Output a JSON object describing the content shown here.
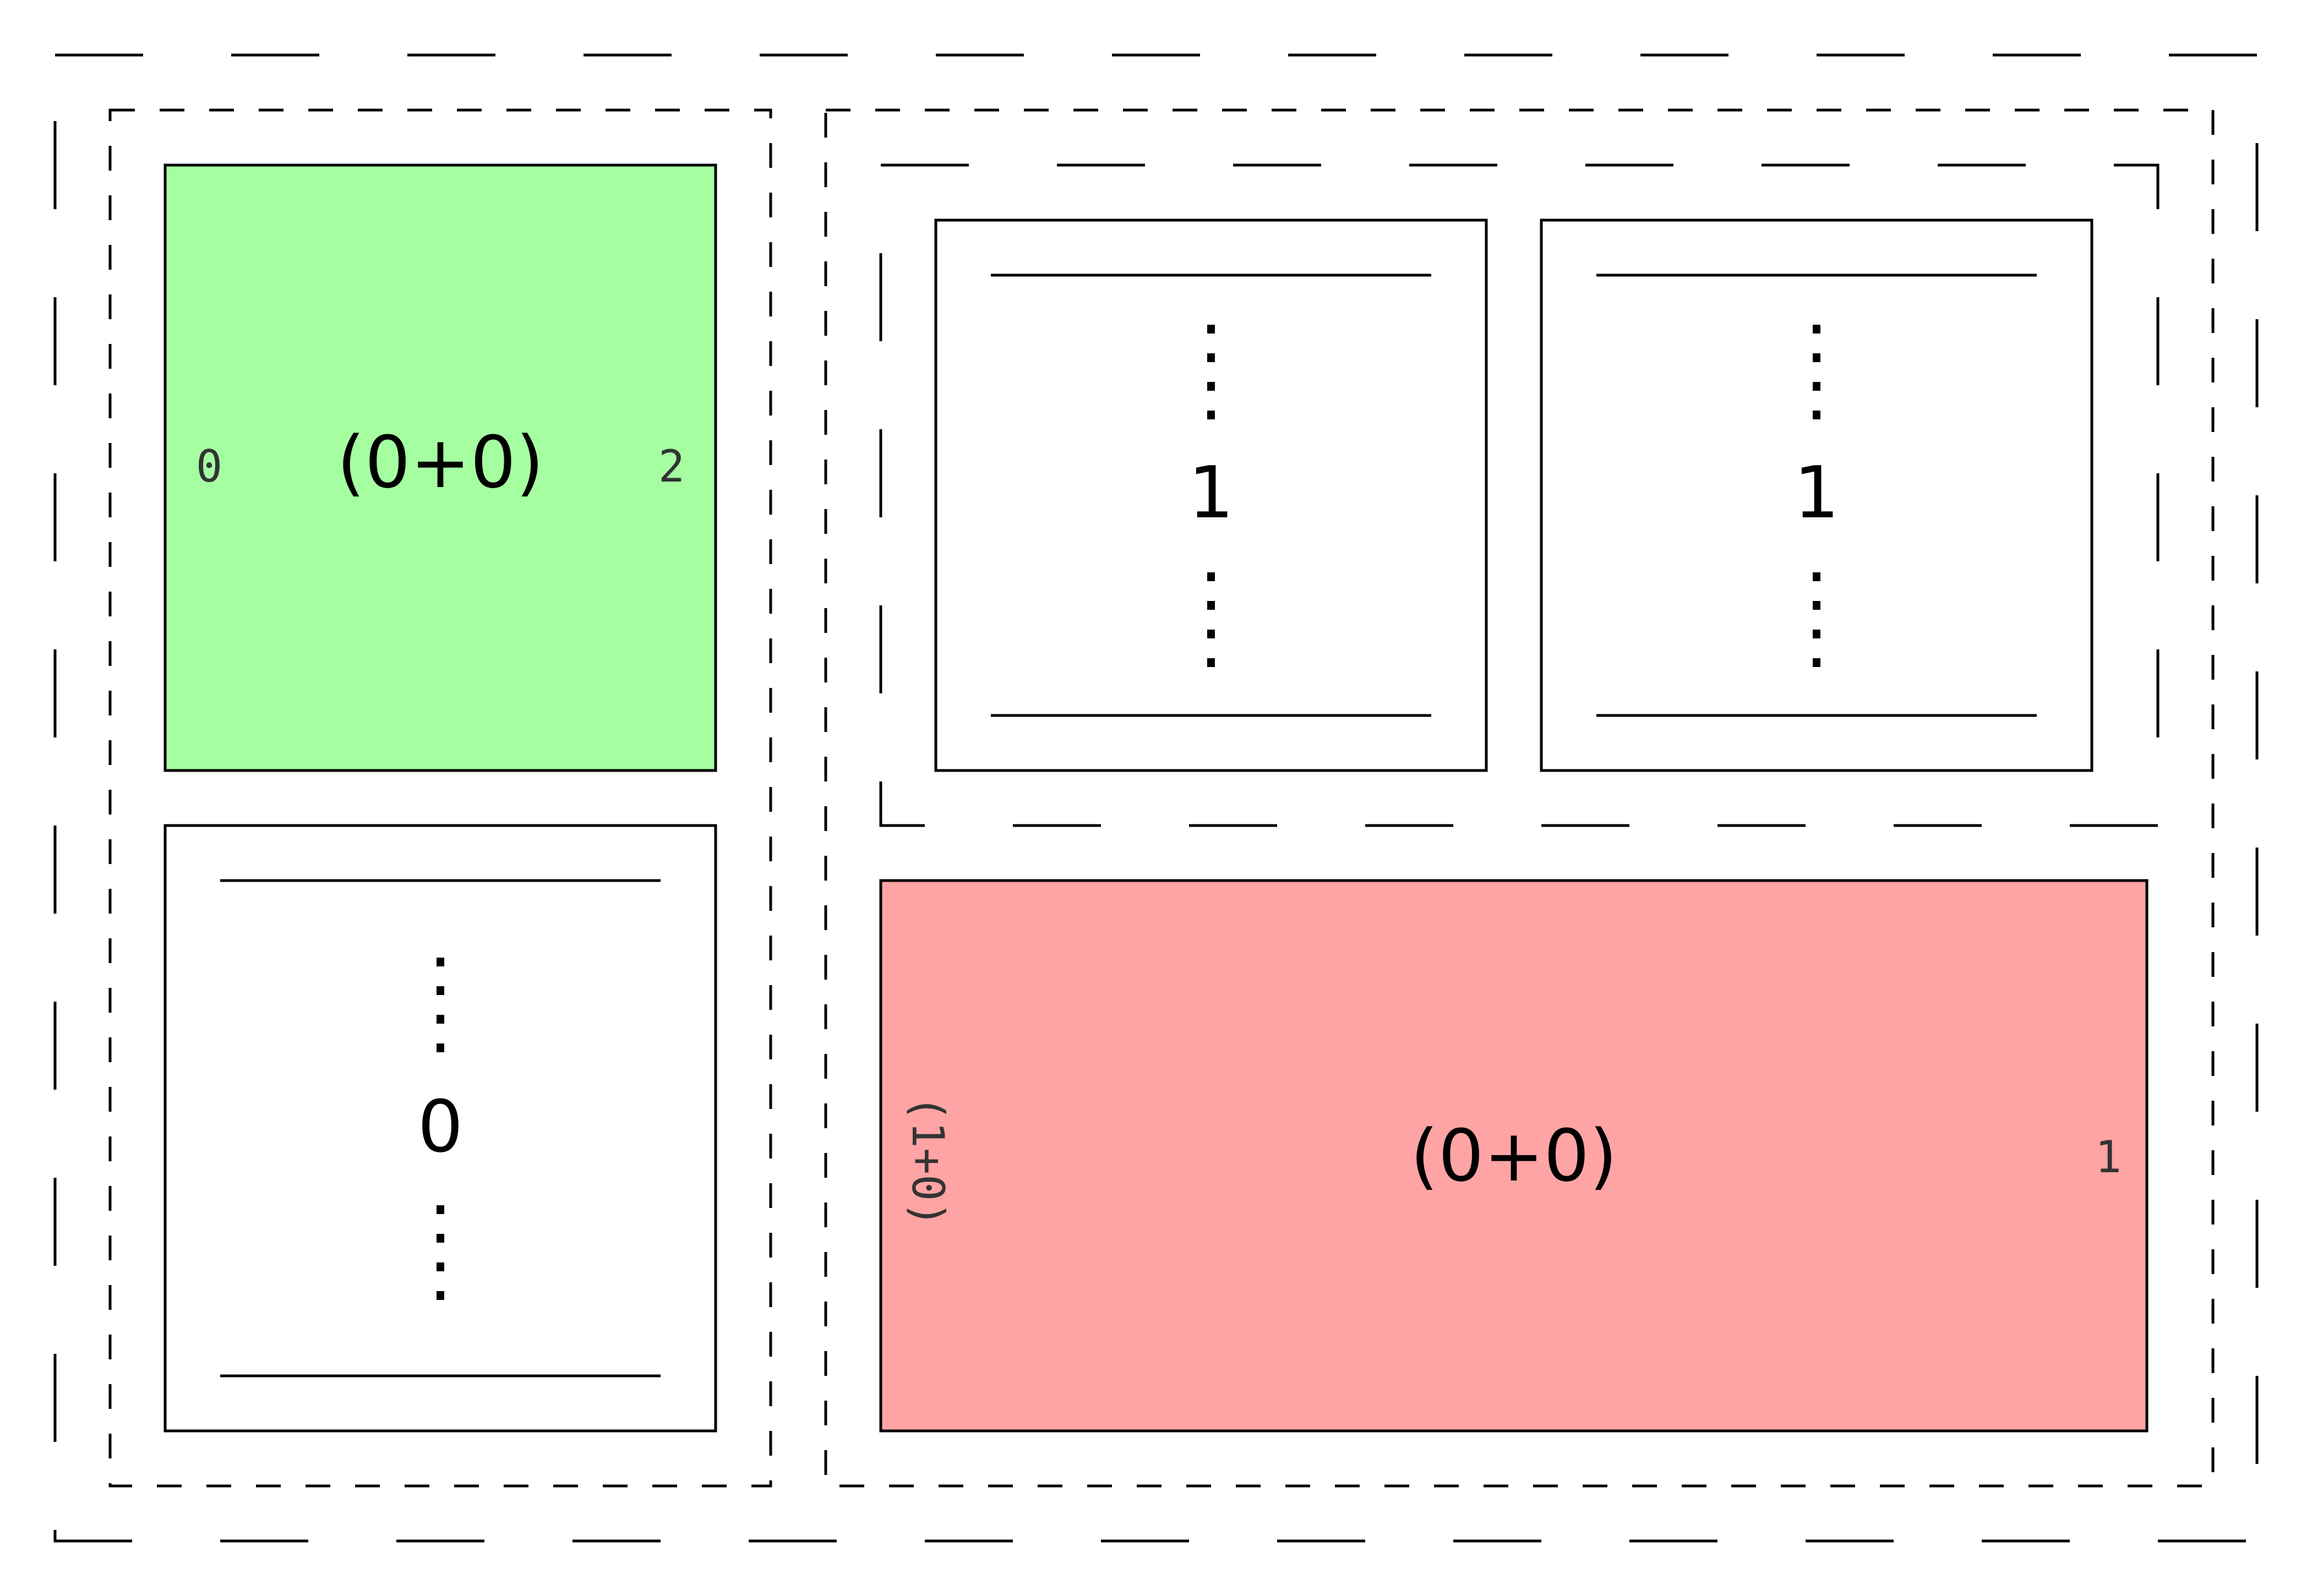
{
  "colors": {
    "green_block": "#a5ffa1",
    "red_block": "#ffa4a4",
    "stroke": "#000000",
    "background": "#ffffff"
  },
  "left_column": {
    "green_block": {
      "label": "(0+0)",
      "left_index": "0",
      "right_index": "2"
    },
    "stack_block": {
      "label": "0",
      "dots_icon": "vertical-ellipsis-icon"
    }
  },
  "right_column": {
    "stack_blocks": [
      {
        "label": "1",
        "dots_icon": "vertical-ellipsis-icon"
      },
      {
        "label": "1",
        "dots_icon": "vertical-ellipsis-icon"
      }
    ],
    "red_block": {
      "label": "(0+0)",
      "left_index": "(1+0)",
      "right_index": "1"
    }
  }
}
